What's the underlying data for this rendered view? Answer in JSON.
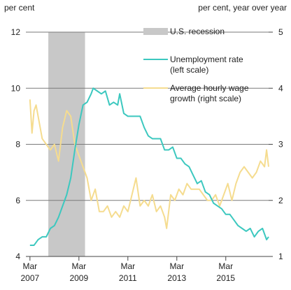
{
  "chart_data": {
    "type": "line",
    "left_axis": {
      "unit_label": "per cent",
      "range": [
        4,
        12
      ],
      "ticks": [
        4,
        6,
        8,
        10,
        12
      ]
    },
    "right_axis": {
      "unit_label": "per cent, year over year",
      "range": [
        1,
        5
      ],
      "ticks": [
        1,
        2,
        3,
        4,
        5
      ]
    },
    "x_axis": {
      "range": [
        "2007-01",
        "2016-12"
      ],
      "ticks": [
        {
          "date": "2007-03",
          "month": "Mar",
          "year": "2007"
        },
        {
          "date": "2009-03",
          "month": "Mar",
          "year": "2009"
        },
        {
          "date": "2011-03",
          "month": "Mar",
          "year": "2011"
        },
        {
          "date": "2013-03",
          "month": "Mar",
          "year": "2013"
        },
        {
          "date": "2015-03",
          "month": "Mar",
          "year": "2015"
        }
      ]
    },
    "gridlines": "horizontal",
    "legend_position": "top-right",
    "recession": {
      "name": "U.S. recession",
      "start": "2007-12",
      "end": "2009-06",
      "color": "#c8c8c8"
    },
    "series": [
      {
        "name": "Unemployment rate\n(left scale)",
        "axis": "left",
        "color": "#3cc8bf",
        "points": [
          [
            "2007-03",
            4.4
          ],
          [
            "2007-05",
            4.4
          ],
          [
            "2007-07",
            4.6
          ],
          [
            "2007-09",
            4.7
          ],
          [
            "2007-11",
            4.7
          ],
          [
            "2008-01",
            5.0
          ],
          [
            "2008-03",
            5.1
          ],
          [
            "2008-05",
            5.4
          ],
          [
            "2008-07",
            5.8
          ],
          [
            "2008-09",
            6.2
          ],
          [
            "2008-11",
            6.8
          ],
          [
            "2009-01",
            7.8
          ],
          [
            "2009-03",
            8.7
          ],
          [
            "2009-05",
            9.4
          ],
          [
            "2009-07",
            9.5
          ],
          [
            "2009-09",
            9.8
          ],
          [
            "2009-10",
            10.0
          ],
          [
            "2009-12",
            9.9
          ],
          [
            "2010-02",
            9.8
          ],
          [
            "2010-04",
            9.9
          ],
          [
            "2010-06",
            9.4
          ],
          [
            "2010-08",
            9.5
          ],
          [
            "2010-10",
            9.4
          ],
          [
            "2010-11",
            9.8
          ],
          [
            "2011-01",
            9.1
          ],
          [
            "2011-03",
            9.0
          ],
          [
            "2011-05",
            9.0
          ],
          [
            "2011-07",
            9.0
          ],
          [
            "2011-09",
            9.0
          ],
          [
            "2011-11",
            8.6
          ],
          [
            "2012-01",
            8.3
          ],
          [
            "2012-03",
            8.2
          ],
          [
            "2012-05",
            8.2
          ],
          [
            "2012-07",
            8.2
          ],
          [
            "2012-09",
            7.8
          ],
          [
            "2012-11",
            7.8
          ],
          [
            "2013-01",
            7.9
          ],
          [
            "2013-03",
            7.5
          ],
          [
            "2013-05",
            7.5
          ],
          [
            "2013-07",
            7.3
          ],
          [
            "2013-09",
            7.2
          ],
          [
            "2013-11",
            6.9
          ],
          [
            "2014-01",
            6.6
          ],
          [
            "2014-03",
            6.7
          ],
          [
            "2014-05",
            6.3
          ],
          [
            "2014-07",
            6.2
          ],
          [
            "2014-09",
            5.9
          ],
          [
            "2014-11",
            5.8
          ],
          [
            "2015-01",
            5.7
          ],
          [
            "2015-03",
            5.5
          ],
          [
            "2015-05",
            5.5
          ],
          [
            "2015-07",
            5.3
          ],
          [
            "2015-09",
            5.1
          ],
          [
            "2015-11",
            5.0
          ],
          [
            "2016-01",
            4.9
          ],
          [
            "2016-03",
            5.0
          ],
          [
            "2016-05",
            4.7
          ],
          [
            "2016-07",
            4.9
          ],
          [
            "2016-09",
            5.0
          ],
          [
            "2016-11",
            4.6
          ],
          [
            "2016-12",
            4.7
          ]
        ]
      },
      {
        "name": "Average hourly wage\ngrowth (right scale)",
        "axis": "right",
        "color": "#f5dc8f",
        "points": [
          [
            "2007-03",
            3.8
          ],
          [
            "2007-04",
            3.2
          ],
          [
            "2007-05",
            3.6
          ],
          [
            "2007-06",
            3.7
          ],
          [
            "2007-07",
            3.5
          ],
          [
            "2007-09",
            3.1
          ],
          [
            "2007-11",
            3.0
          ],
          [
            "2008-01",
            2.9
          ],
          [
            "2008-03",
            3.0
          ],
          [
            "2008-05",
            2.7
          ],
          [
            "2008-07",
            3.3
          ],
          [
            "2008-09",
            3.6
          ],
          [
            "2008-11",
            3.5
          ],
          [
            "2009-01",
            3.0
          ],
          [
            "2009-03",
            2.8
          ],
          [
            "2009-05",
            2.6
          ],
          [
            "2009-07",
            2.4
          ],
          [
            "2009-09",
            2.0
          ],
          [
            "2009-11",
            2.2
          ],
          [
            "2010-01",
            1.8
          ],
          [
            "2010-03",
            1.8
          ],
          [
            "2010-05",
            1.9
          ],
          [
            "2010-07",
            1.7
          ],
          [
            "2010-09",
            1.8
          ],
          [
            "2010-11",
            1.7
          ],
          [
            "2011-01",
            1.9
          ],
          [
            "2011-03",
            1.8
          ],
          [
            "2011-05",
            2.1
          ],
          [
            "2011-07",
            2.4
          ],
          [
            "2011-09",
            1.9
          ],
          [
            "2011-11",
            2.0
          ],
          [
            "2012-01",
            1.9
          ],
          [
            "2012-03",
            2.1
          ],
          [
            "2012-05",
            1.8
          ],
          [
            "2012-07",
            1.9
          ],
          [
            "2012-09",
            1.7
          ],
          [
            "2012-10",
            1.5
          ],
          [
            "2012-12",
            2.1
          ],
          [
            "2013-02",
            2.0
          ],
          [
            "2013-04",
            2.2
          ],
          [
            "2013-06",
            2.1
          ],
          [
            "2013-08",
            2.3
          ],
          [
            "2013-10",
            2.2
          ],
          [
            "2013-12",
            2.2
          ],
          [
            "2014-02",
            2.2
          ],
          [
            "2014-04",
            2.1
          ],
          [
            "2014-06",
            2.0
          ],
          [
            "2014-08",
            2.0
          ],
          [
            "2014-10",
            2.1
          ],
          [
            "2014-12",
            1.9
          ],
          [
            "2015-02",
            2.1
          ],
          [
            "2015-04",
            2.3
          ],
          [
            "2015-06",
            2.0
          ],
          [
            "2015-08",
            2.3
          ],
          [
            "2015-10",
            2.5
          ],
          [
            "2015-12",
            2.6
          ],
          [
            "2016-02",
            2.5
          ],
          [
            "2016-04",
            2.4
          ],
          [
            "2016-06",
            2.5
          ],
          [
            "2016-08",
            2.7
          ],
          [
            "2016-10",
            2.6
          ],
          [
            "2016-11",
            2.9
          ],
          [
            "2016-12",
            2.6
          ]
        ]
      }
    ]
  }
}
